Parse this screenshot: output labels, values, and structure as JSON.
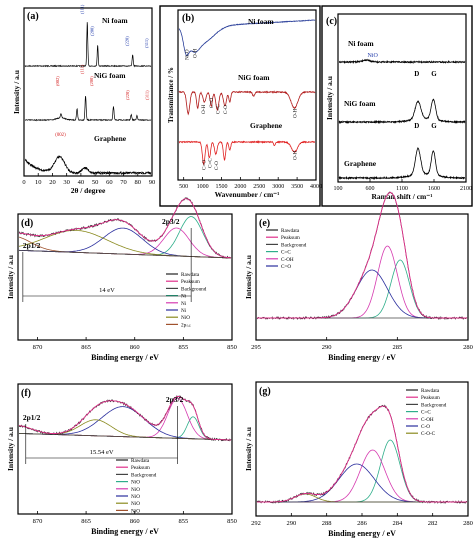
{
  "chart_data": [
    {
      "id": "a",
      "panel_label": "(a)",
      "type": "line",
      "xlabel": "2θ / degree",
      "ylabel": "Intensity / a.u",
      "x_ticks": [
        "0",
        "10",
        "20",
        "30",
        "40",
        "50",
        "60",
        "70",
        "80",
        "90"
      ],
      "xlim": [
        0,
        90
      ],
      "series": [
        {
          "name": "Ni foam",
          "color": "#000000",
          "peaks": [
            [
              44.5,
              0.95
            ],
            [
              51.8,
              0.45
            ],
            [
              76.4,
              0.25
            ],
            [
              92,
              0.2
            ]
          ],
          "labels": [
            "(111)",
            "(200)",
            "(220)",
            "(311)"
          ],
          "label_color": "#1a35a8"
        },
        {
          "name": "NiG foam",
          "color": "#000000",
          "peaks": [
            [
              26,
              0.1
            ],
            [
              37.3,
              0.25
            ],
            [
              43.3,
              0.55
            ],
            [
              62.9,
              0.3
            ],
            [
              75.4,
              0.12
            ],
            [
              79.4,
              0.1
            ]
          ],
          "labels": [
            "(002)",
            "(111)",
            "(200)",
            "(220)",
            "(311)"
          ],
          "label_color": "#d42020"
        },
        {
          "name": "Graphene",
          "color": "#000000",
          "peaks": [
            [
              25,
              0.55
            ],
            [
              43,
              0.1
            ]
          ],
          "labels": [
            "(002)"
          ],
          "label_color": "#d42020"
        }
      ]
    },
    {
      "id": "b",
      "panel_label": "(b)",
      "type": "line",
      "xlabel": "Wavenumber / cm⁻¹",
      "ylabel": "Transmittance / %",
      "x_ticks": [
        "500",
        "1000",
        "1500",
        "2000",
        "2500",
        "3000",
        "3500",
        "4000"
      ],
      "xlim": [
        350,
        4000
      ],
      "series": [
        {
          "name": "Ni foam",
          "color": "#2a3f9a"
        },
        {
          "name": "NiG foam",
          "color": "#b01818"
        },
        {
          "name": "Graphene",
          "color": "#e02020"
        }
      ],
      "annotations": [
        "Ni-O",
        "O-H",
        "O-H",
        "C=O",
        "C=C",
        "C-O",
        "O-H",
        "C=O",
        "C=C",
        "C-O",
        "O-H"
      ]
    },
    {
      "id": "c",
      "panel_label": "(c)",
      "type": "line",
      "xlabel": "Raman shift / cm⁻¹",
      "ylabel": "Intensity / a.u",
      "x_ticks": [
        "100",
        "600",
        "1100",
        "1600",
        "2100"
      ],
      "xlim": [
        100,
        2100
      ],
      "series": [
        {
          "name": "Ni foam",
          "color": "#000000"
        },
        {
          "name": "NiG foam",
          "color": "#000000",
          "peaks": [
            [
              1350,
              "D"
            ],
            [
              1590,
              "G"
            ]
          ]
        },
        {
          "name": "Graphene",
          "color": "#000000",
          "peaks": [
            [
              1350,
              "D"
            ],
            [
              1590,
              "G"
            ]
          ]
        }
      ],
      "annotations": [
        "NiO",
        "D",
        "G",
        "D",
        "G"
      ]
    },
    {
      "id": "d",
      "panel_label": "(d)",
      "type": "line",
      "xlabel": "Binding energy / eV",
      "ylabel": "Intensity / a.u",
      "x_ticks": [
        "870",
        "865",
        "860",
        "855",
        "850"
      ],
      "xlim": [
        872,
        850
      ],
      "annotations": [
        "2p1/2",
        "2p3/2",
        "14 eV"
      ],
      "legend": [
        {
          "label": "Rawdata",
          "color": "#222222"
        },
        {
          "label": "Peaksum",
          "color": "#e0308a"
        },
        {
          "label": "Background",
          "color": "#444444"
        },
        {
          "label": "Ni",
          "color": "#2eae8a"
        },
        {
          "label": "Ni",
          "color": "#d63bb0"
        },
        {
          "label": "Ni",
          "color": "#2b2f9e"
        },
        {
          "label": "NiO",
          "color": "#8a8a1e"
        },
        {
          "label": "2pₛₐₜ",
          "color": "#a0522d"
        }
      ]
    },
    {
      "id": "e",
      "panel_label": "(e)",
      "type": "line",
      "xlabel": "Binding energy / eV",
      "ylabel": "Intensity / a.u",
      "x_ticks": [
        "295",
        "290",
        "285",
        "280"
      ],
      "xlim": [
        295,
        280
      ],
      "legend": [
        {
          "label": "Rawdata",
          "color": "#222222"
        },
        {
          "label": "Peaksum",
          "color": "#e0308a"
        },
        {
          "label": "Background",
          "color": "#444444"
        },
        {
          "label": "C=C",
          "color": "#2eae8a"
        },
        {
          "label": "C-OH",
          "color": "#d63bb0"
        },
        {
          "label": "C=O",
          "color": "#2b2f9e"
        }
      ]
    },
    {
      "id": "f",
      "panel_label": "(f)",
      "type": "line",
      "xlabel": "Binding energy / eV",
      "ylabel": "Intensity / a.u",
      "x_ticks": [
        "870",
        "865",
        "860",
        "855",
        "850"
      ],
      "xlim": [
        872,
        850
      ],
      "annotations": [
        "2p1/2",
        "2p3/2",
        "15.54 eV"
      ],
      "legend": [
        {
          "label": "Rawdata",
          "color": "#222222"
        },
        {
          "label": "Peaksum",
          "color": "#e0308a"
        },
        {
          "label": "Background",
          "color": "#444444"
        },
        {
          "label": "NiO",
          "color": "#2eae8a"
        },
        {
          "label": "NiO",
          "color": "#d63bb0"
        },
        {
          "label": "NiO",
          "color": "#2b2f9e"
        },
        {
          "label": "NiO",
          "color": "#8a8a1e"
        },
        {
          "label": "NiO",
          "color": "#a0522d"
        }
      ]
    },
    {
      "id": "g",
      "panel_label": "(g)",
      "type": "line",
      "xlabel": "Binding energy / eV",
      "ylabel": "Intensity / a.u",
      "x_ticks": [
        "292",
        "290",
        "288",
        "286",
        "284",
        "282",
        "280"
      ],
      "xlim": [
        292,
        280
      ],
      "legend": [
        {
          "label": "Rawdata",
          "color": "#222222"
        },
        {
          "label": "Peaksum",
          "color": "#e0308a"
        },
        {
          "label": "Background",
          "color": "#444444"
        },
        {
          "label": "C=C",
          "color": "#2eae8a"
        },
        {
          "label": "C-OH",
          "color": "#d63bb0"
        },
        {
          "label": "C-O",
          "color": "#2b2f9e"
        },
        {
          "label": "C-O-C",
          "color": "#8a8a1e"
        }
      ]
    }
  ]
}
